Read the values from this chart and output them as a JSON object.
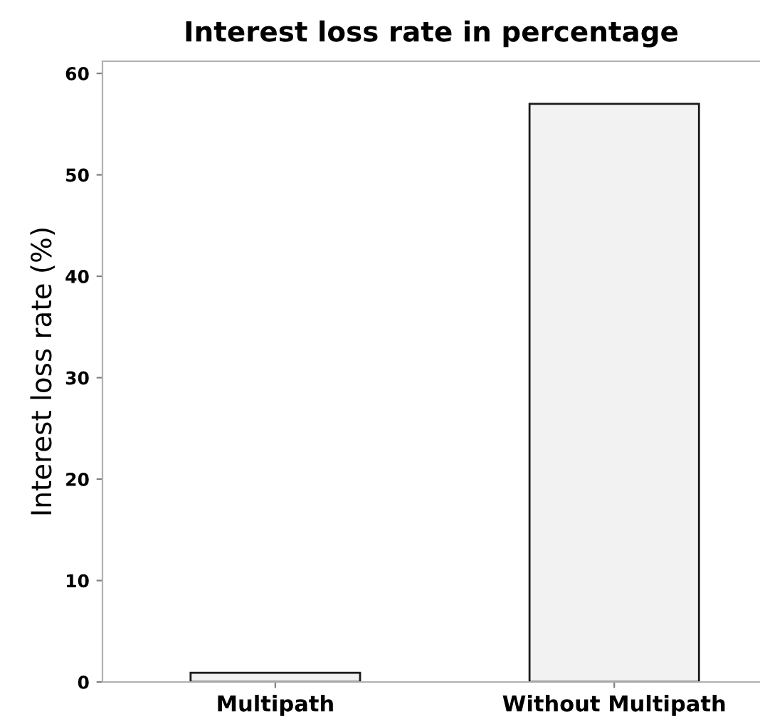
{
  "chart_data": {
    "type": "bar",
    "title": "Interest loss rate in percentage",
    "ylabel": "Interest loss rate (%)",
    "categories": [
      "Multipath",
      "Without Multipath"
    ],
    "values": [
      0.9,
      57
    ],
    "color": "#f2f2f2",
    "ylim": [
      0,
      61.2
    ],
    "yticks": [
      0,
      10,
      20,
      30,
      40,
      50,
      60
    ],
    "grid": false,
    "legend": false
  }
}
